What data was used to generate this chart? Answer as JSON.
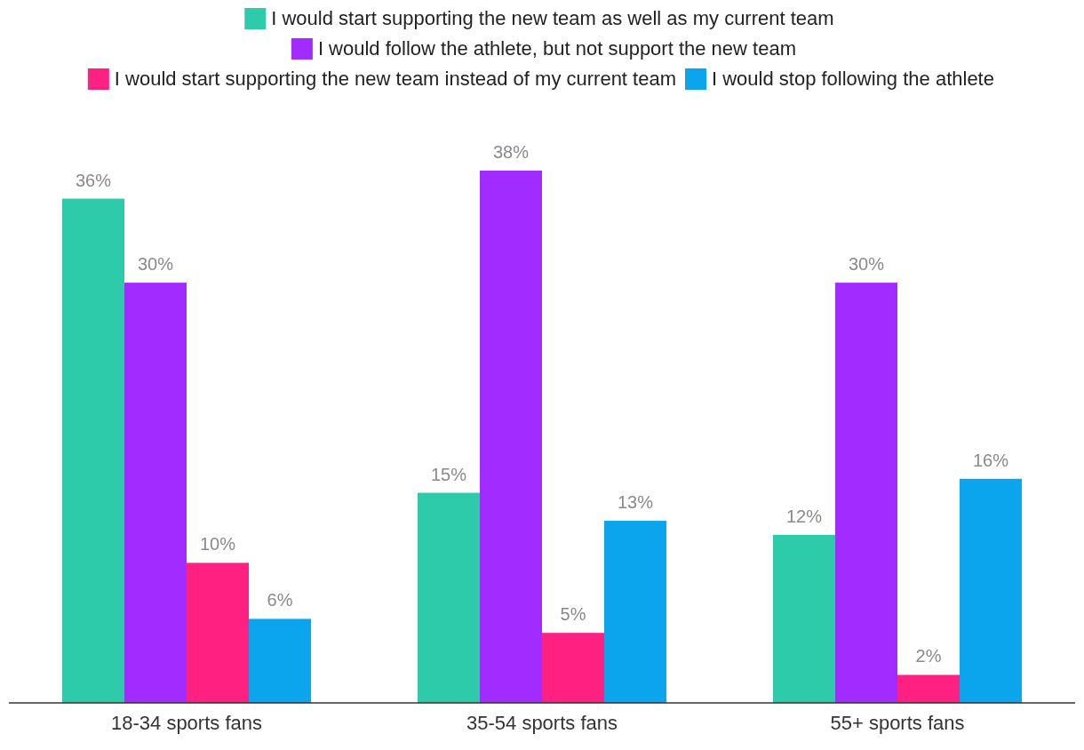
{
  "chart_data": {
    "type": "bar",
    "categories": [
      "18-34 sports fans",
      "35-54 sports fans",
      "55+ sports fans"
    ],
    "series": [
      {
        "name": "I would start supporting the new team as well as my current team",
        "color": "#2ecbab",
        "values": [
          36,
          15,
          12
        ],
        "value_labels": [
          "36%",
          "15%",
          "12%"
        ]
      },
      {
        "name": "I would follow the athlete, but not support the new team",
        "color": "#a22bff",
        "values": [
          30,
          38,
          30
        ],
        "value_labels": [
          "30%",
          "38%",
          "30%"
        ]
      },
      {
        "name": "I would start supporting the new team instead of my current team",
        "color": "#ff2181",
        "values": [
          10,
          5,
          2
        ],
        "value_labels": [
          "10%",
          "5%",
          "2%"
        ]
      },
      {
        "name": "I would stop following the athlete",
        "color": "#0aa5ec",
        "values": [
          6,
          13,
          16
        ],
        "value_labels": [
          "6%",
          "13%",
          "16%"
        ]
      }
    ],
    "legend": "top"
  }
}
